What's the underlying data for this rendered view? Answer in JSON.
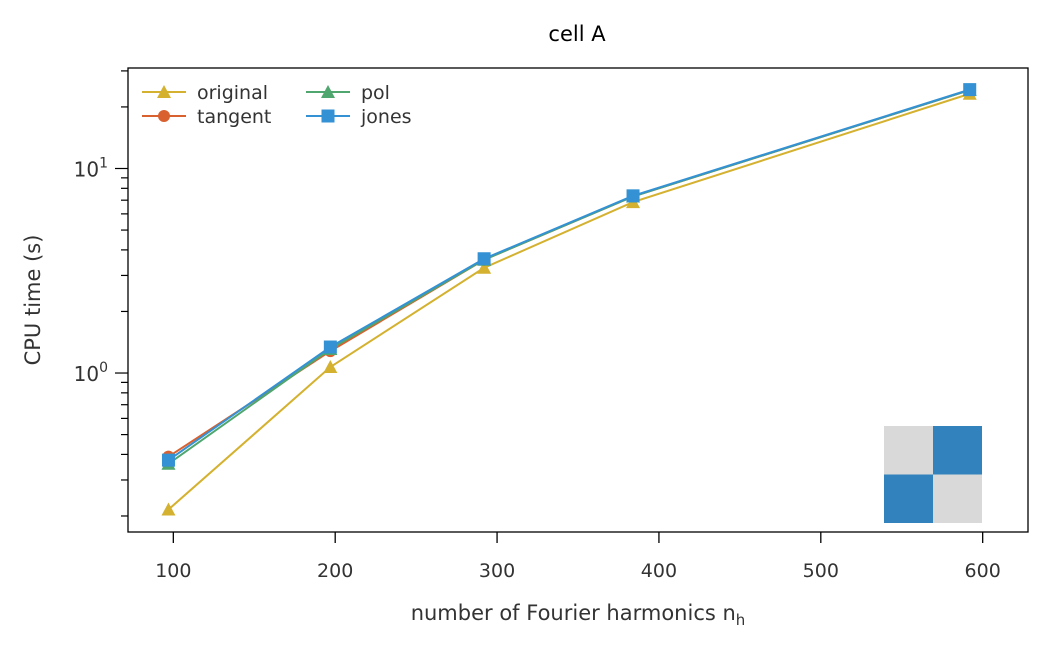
{
  "chart_data": {
    "type": "line",
    "title": "cell A",
    "xlabel": "number of Fourier harmonics n",
    "xlabel_subscript": "h",
    "ylabel": "CPU time (s)",
    "xlim": [
      72,
      628
    ],
    "ylim": [
      0.167,
      31
    ],
    "yscale": "log",
    "grid": false,
    "legend_position": "top-left",
    "x_ticks": [
      100,
      200,
      300,
      400,
      500,
      600
    ],
    "x_tick_labels": [
      "100",
      "200",
      "300",
      "400",
      "500",
      "600"
    ],
    "y_ticks": [
      1,
      10
    ],
    "y_tick_labels": [
      {
        "base": "10",
        "exp": "0"
      },
      {
        "base": "10",
        "exp": "1"
      }
    ],
    "x": [
      97,
      197,
      292,
      384,
      592
    ],
    "series": [
      {
        "name": "original",
        "color": "#d4b12f",
        "marker": "triangle",
        "values": [
          0.215,
          1.07,
          3.27,
          6.85,
          23.2
        ]
      },
      {
        "name": "tangent",
        "color": "#d9602f",
        "marker": "circle",
        "values": [
          0.39,
          1.28,
          3.58,
          7.3,
          24.2
        ]
      },
      {
        "name": "pol",
        "color": "#4fa66e",
        "marker": "triangle",
        "values": [
          0.36,
          1.31,
          3.58,
          7.3,
          24.2
        ]
      },
      {
        "name": "jones",
        "color": "#3391d4",
        "marker": "square",
        "values": [
          0.375,
          1.34,
          3.62,
          7.35,
          24.3
        ]
      }
    ],
    "inset_pattern": {
      "colors": [
        "#d9d9d9",
        "#3182bd",
        "#3182bd",
        "#d9d9d9"
      ]
    }
  }
}
